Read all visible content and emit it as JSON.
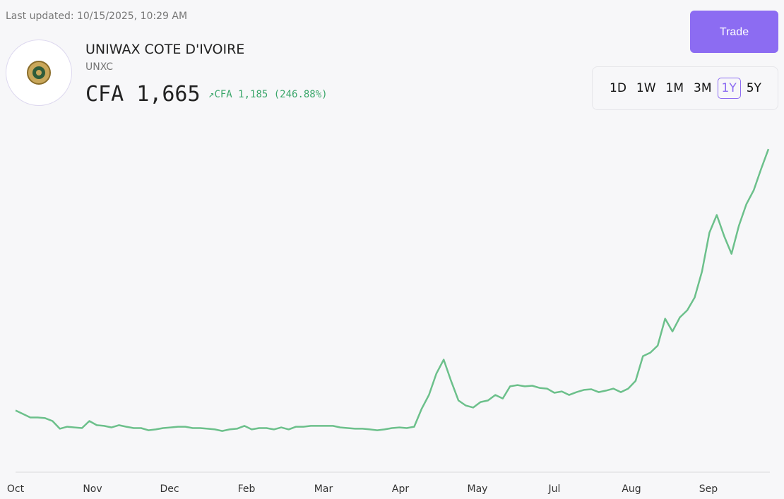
{
  "header": {
    "last_updated": "Last updated: 10/15/2025, 10:29 AM",
    "company": "UNIWAX COTE D'IVOIRE",
    "ticker": "UNXC",
    "price": "CFA 1,665",
    "change": "CFA 1,185",
    "change_percent": "(246.88%)",
    "trade_button": "Trade"
  },
  "ranges": {
    "options": [
      "1D",
      "1W",
      "1M",
      "3M",
      "1Y",
      "5Y"
    ],
    "selected_index": 4
  },
  "chart_data": {
    "type": "line",
    "color": "#6cc08b",
    "xtick_labels": [
      "Oct",
      "Nov",
      "Dec",
      "Feb",
      "Mar",
      "Apr",
      "May",
      "Jul",
      "Aug",
      "Sep"
    ],
    "ylim": [
      200,
      1800
    ],
    "values": [
      480,
      464,
      448,
      448,
      445,
      432,
      397,
      406,
      403,
      400,
      432,
      413,
      410,
      403,
      413,
      406,
      400,
      400,
      390,
      394,
      400,
      403,
      406,
      406,
      400,
      400,
      397,
      394,
      387,
      394,
      397,
      410,
      394,
      400,
      400,
      394,
      403,
      394,
      406,
      406,
      410,
      410,
      410,
      410,
      403,
      400,
      397,
      397,
      394,
      390,
      394,
      400,
      403,
      400,
      406,
      486,
      550,
      646,
      710,
      614,
      525,
      502,
      493,
      518,
      525,
      550,
      534,
      589,
      595,
      589,
      592,
      582,
      579,
      560,
      566,
      550,
      563,
      573,
      576,
      563,
      570,
      579,
      563,
      579,
      614,
      726,
      742,
      774,
      896,
      838,
      902,
      934,
      992,
      1110,
      1286,
      1366,
      1270,
      1190,
      1318,
      1414,
      1478,
      1574,
      1665
    ]
  }
}
